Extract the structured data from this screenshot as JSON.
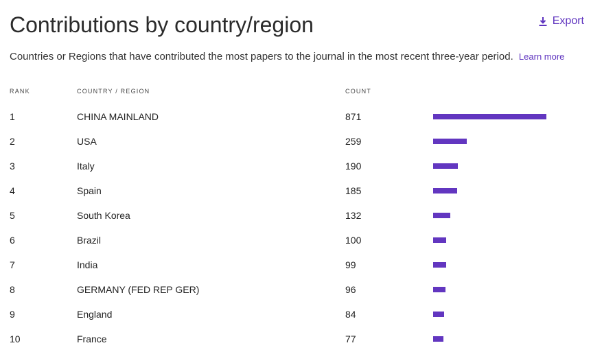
{
  "header": {
    "title": "Contributions by country/region",
    "export_label": "Export",
    "subtitle": "Countries or Regions that have contributed the most papers to the journal in the most recent three-year period.",
    "learn_more": "Learn more"
  },
  "table": {
    "columns": [
      "RANK",
      "COUNTRY / REGION",
      "COUNT"
    ],
    "rows": [
      {
        "rank": "1",
        "country": "CHINA MAINLAND",
        "count": "871",
        "value": 871
      },
      {
        "rank": "2",
        "country": "USA",
        "count": "259",
        "value": 259
      },
      {
        "rank": "3",
        "country": "Italy",
        "count": "190",
        "value": 190
      },
      {
        "rank": "4",
        "country": "Spain",
        "count": "185",
        "value": 185
      },
      {
        "rank": "5",
        "country": "South Korea",
        "count": "132",
        "value": 132
      },
      {
        "rank": "6",
        "country": "Brazil",
        "count": "100",
        "value": 100
      },
      {
        "rank": "7",
        "country": "India",
        "count": "99",
        "value": 99
      },
      {
        "rank": "8",
        "country": "GERMANY (FED REP GER)",
        "count": "96",
        "value": 96
      },
      {
        "rank": "9",
        "country": "England",
        "count": "84",
        "value": 84
      },
      {
        "rank": "10",
        "country": "France",
        "count": "77",
        "value": 77
      }
    ]
  },
  "colors": {
    "accent": "#5e33bf",
    "bar": "#6236c0"
  },
  "icons": {
    "export": "download-icon"
  }
}
